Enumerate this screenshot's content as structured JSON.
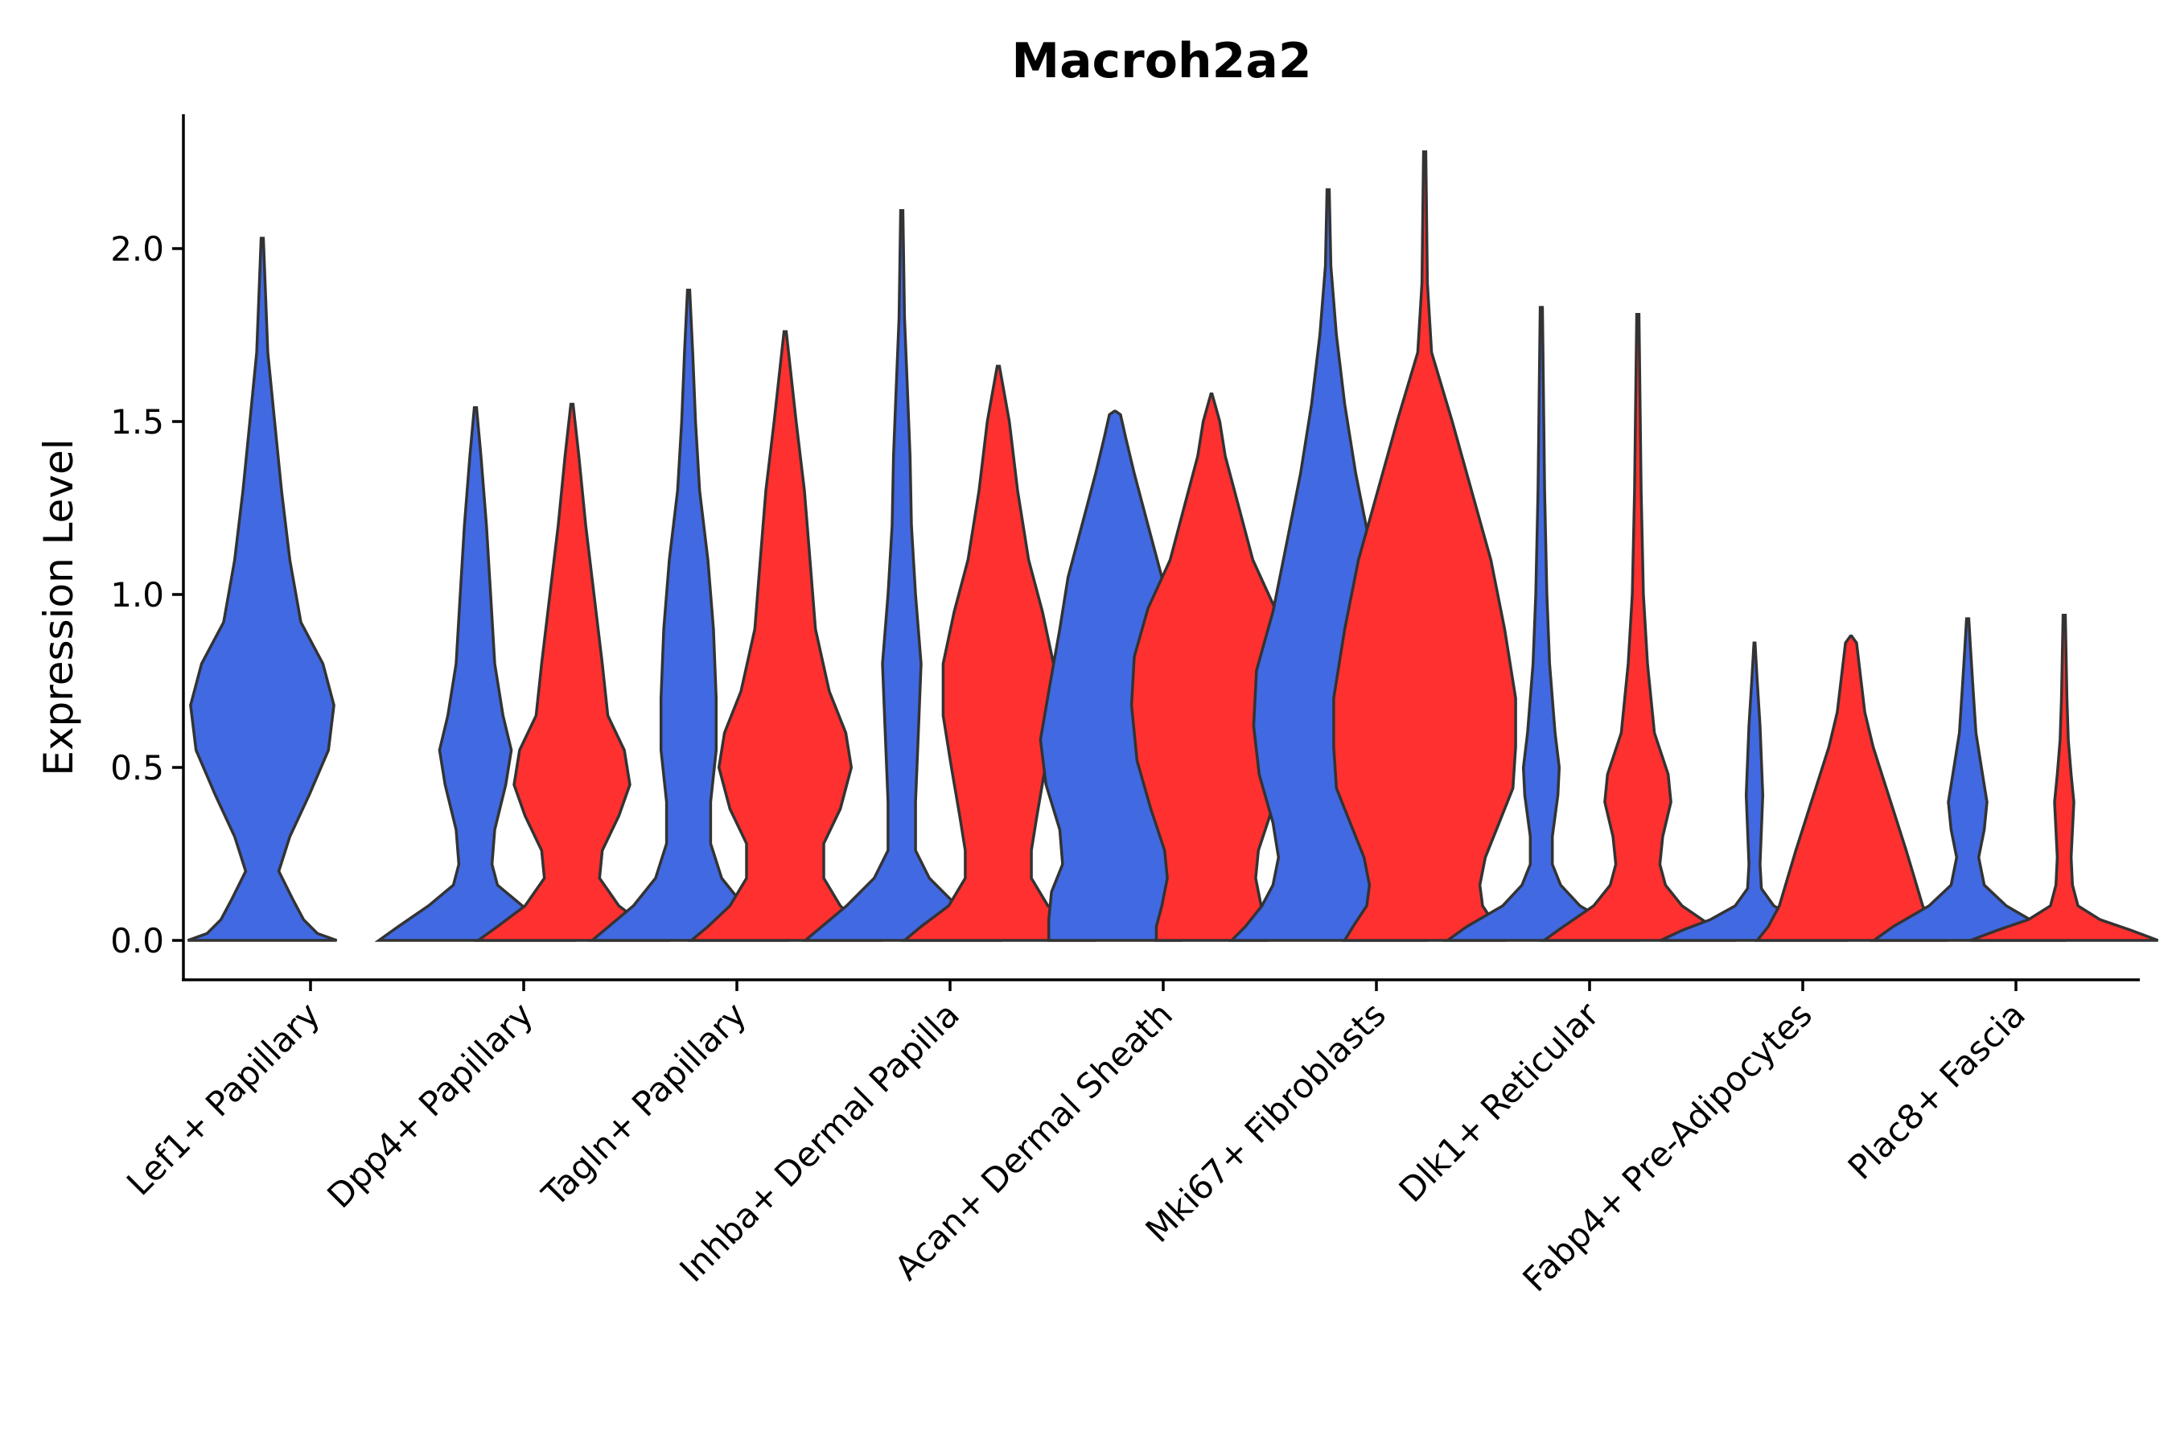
{
  "chart_data": {
    "type": "violin",
    "title": "Macroh2a2",
    "xlabel": "",
    "ylabel": "Expression Level",
    "ylim": [
      -0.12,
      2.4
    ],
    "yticks": [
      0.0,
      0.5,
      1.0,
      1.5,
      2.0
    ],
    "ytick_labels": [
      "0.0",
      "0.5",
      "1.0",
      "1.5",
      "2.0"
    ],
    "categories": [
      "Lef1+ Papillary",
      "Dpp4+ Papillary",
      "Tagln+ Papillary",
      "Inhba+ Dermal Papilla",
      "Acan+ Dermal Sheath",
      "Mki67+ Fibroblasts",
      "Dlk1+ Reticular",
      "Fabp4+ Pre-Adipocytes",
      "Plac8+ Fascia"
    ],
    "split_colors": [
      "#4169E1",
      "#FF3030"
    ],
    "violins": [
      {
        "group": 0,
        "split": 0,
        "max": 2.03,
        "profile": [
          [
            0,
            0.27
          ],
          [
            0.02,
            0.2
          ],
          [
            0.06,
            0.15
          ],
          [
            0.12,
            0.11
          ],
          [
            0.2,
            0.06
          ],
          [
            0.3,
            0.1
          ],
          [
            0.42,
            0.17
          ],
          [
            0.55,
            0.24
          ],
          [
            0.68,
            0.26
          ],
          [
            0.8,
            0.22
          ],
          [
            0.92,
            0.14
          ],
          [
            1.1,
            0.1
          ],
          [
            1.3,
            0.07
          ],
          [
            1.5,
            0.045
          ],
          [
            1.7,
            0.02
          ],
          [
            2.03,
            0.004
          ]
        ]
      },
      {
        "group": 1,
        "split": 0,
        "max": 1.54,
        "profile": [
          [
            0,
            0.35
          ],
          [
            0.04,
            0.28
          ],
          [
            0.1,
            0.17
          ],
          [
            0.16,
            0.08
          ],
          [
            0.22,
            0.06
          ],
          [
            0.32,
            0.07
          ],
          [
            0.45,
            0.11
          ],
          [
            0.55,
            0.13
          ],
          [
            0.65,
            0.1
          ],
          [
            0.8,
            0.07
          ],
          [
            1.0,
            0.055
          ],
          [
            1.2,
            0.04
          ],
          [
            1.4,
            0.02
          ],
          [
            1.54,
            0.004
          ]
        ]
      },
      {
        "group": 1,
        "split": 1,
        "max": 1.55,
        "profile": [
          [
            0,
            0.34
          ],
          [
            0.04,
            0.27
          ],
          [
            0.1,
            0.17
          ],
          [
            0.18,
            0.1
          ],
          [
            0.26,
            0.11
          ],
          [
            0.36,
            0.17
          ],
          [
            0.45,
            0.21
          ],
          [
            0.55,
            0.19
          ],
          [
            0.65,
            0.13
          ],
          [
            0.8,
            0.11
          ],
          [
            1.0,
            0.08
          ],
          [
            1.2,
            0.05
          ],
          [
            1.4,
            0.025
          ],
          [
            1.55,
            0.004
          ]
        ]
      },
      {
        "group": 2,
        "split": 0,
        "max": 1.88,
        "profile": [
          [
            0,
            0.35
          ],
          [
            0.04,
            0.29
          ],
          [
            0.1,
            0.2
          ],
          [
            0.18,
            0.12
          ],
          [
            0.28,
            0.08
          ],
          [
            0.4,
            0.08
          ],
          [
            0.55,
            0.1
          ],
          [
            0.7,
            0.1
          ],
          [
            0.9,
            0.09
          ],
          [
            1.1,
            0.07
          ],
          [
            1.3,
            0.04
          ],
          [
            1.5,
            0.025
          ],
          [
            1.7,
            0.015
          ],
          [
            1.88,
            0.004
          ]
        ]
      },
      {
        "group": 2,
        "split": 1,
        "max": 1.76,
        "profile": [
          [
            0,
            0.34
          ],
          [
            0.04,
            0.28
          ],
          [
            0.1,
            0.2
          ],
          [
            0.18,
            0.14
          ],
          [
            0.28,
            0.14
          ],
          [
            0.38,
            0.2
          ],
          [
            0.5,
            0.24
          ],
          [
            0.6,
            0.22
          ],
          [
            0.72,
            0.16
          ],
          [
            0.9,
            0.11
          ],
          [
            1.1,
            0.09
          ],
          [
            1.3,
            0.07
          ],
          [
            1.5,
            0.04
          ],
          [
            1.76,
            0.004
          ]
        ]
      },
      {
        "group": 3,
        "split": 0,
        "max": 2.11,
        "profile": [
          [
            0,
            0.35
          ],
          [
            0.04,
            0.29
          ],
          [
            0.1,
            0.2
          ],
          [
            0.18,
            0.1
          ],
          [
            0.26,
            0.05
          ],
          [
            0.4,
            0.05
          ],
          [
            0.6,
            0.06
          ],
          [
            0.8,
            0.07
          ],
          [
            1.0,
            0.05
          ],
          [
            1.2,
            0.035
          ],
          [
            1.4,
            0.03
          ],
          [
            1.6,
            0.02
          ],
          [
            1.8,
            0.01
          ],
          [
            2.11,
            0.004
          ]
        ]
      },
      {
        "group": 3,
        "split": 1,
        "max": 1.66,
        "profile": [
          [
            0,
            0.34
          ],
          [
            0.04,
            0.28
          ],
          [
            0.1,
            0.18
          ],
          [
            0.18,
            0.12
          ],
          [
            0.26,
            0.12
          ],
          [
            0.36,
            0.14
          ],
          [
            0.5,
            0.17
          ],
          [
            0.65,
            0.2
          ],
          [
            0.8,
            0.2
          ],
          [
            0.95,
            0.16
          ],
          [
            1.1,
            0.11
          ],
          [
            1.3,
            0.07
          ],
          [
            1.5,
            0.04
          ],
          [
            1.66,
            0.004
          ]
        ]
      },
      {
        "group": 4,
        "split": 0,
        "max": 1.53,
        "profile": [
          [
            0,
            0.24
          ],
          [
            0.06,
            0.24
          ],
          [
            0.14,
            0.23
          ],
          [
            0.22,
            0.19
          ],
          [
            0.32,
            0.2
          ],
          [
            0.45,
            0.25
          ],
          [
            0.58,
            0.27
          ],
          [
            0.72,
            0.24
          ],
          [
            0.9,
            0.2
          ],
          [
            1.05,
            0.17
          ],
          [
            1.2,
            0.12
          ],
          [
            1.35,
            0.07
          ],
          [
            1.45,
            0.04
          ],
          [
            1.52,
            0.02
          ],
          [
            1.53,
            0.002
          ]
        ]
      },
      {
        "group": 4,
        "split": 1,
        "max": 1.58,
        "profile": [
          [
            0,
            0.2
          ],
          [
            0.04,
            0.2
          ],
          [
            0.1,
            0.18
          ],
          [
            0.18,
            0.16
          ],
          [
            0.26,
            0.17
          ],
          [
            0.38,
            0.22
          ],
          [
            0.52,
            0.27
          ],
          [
            0.68,
            0.29
          ],
          [
            0.82,
            0.28
          ],
          [
            0.96,
            0.23
          ],
          [
            1.1,
            0.15
          ],
          [
            1.25,
            0.1
          ],
          [
            1.4,
            0.05
          ],
          [
            1.5,
            0.03
          ],
          [
            1.58,
            0.002
          ]
        ]
      },
      {
        "group": 5,
        "split": 0,
        "max": 2.17,
        "profile": [
          [
            0,
            0.35
          ],
          [
            0.04,
            0.3
          ],
          [
            0.1,
            0.24
          ],
          [
            0.16,
            0.2
          ],
          [
            0.24,
            0.18
          ],
          [
            0.34,
            0.2
          ],
          [
            0.48,
            0.25
          ],
          [
            0.62,
            0.27
          ],
          [
            0.78,
            0.26
          ],
          [
            0.95,
            0.2
          ],
          [
            1.15,
            0.15
          ],
          [
            1.35,
            0.1
          ],
          [
            1.55,
            0.06
          ],
          [
            1.75,
            0.03
          ],
          [
            1.95,
            0.01
          ],
          [
            2.17,
            0.004
          ]
        ]
      },
      {
        "group": 5,
        "split": 1,
        "max": 2.28,
        "profile": [
          [
            0,
            0.29
          ],
          [
            0.04,
            0.26
          ],
          [
            0.1,
            0.21
          ],
          [
            0.16,
            0.2
          ],
          [
            0.24,
            0.22
          ],
          [
            0.34,
            0.27
          ],
          [
            0.44,
            0.32
          ],
          [
            0.56,
            0.33
          ],
          [
            0.7,
            0.33
          ],
          [
            0.9,
            0.29
          ],
          [
            1.1,
            0.24
          ],
          [
            1.3,
            0.17
          ],
          [
            1.5,
            0.1
          ],
          [
            1.7,
            0.025
          ],
          [
            1.9,
            0.01
          ],
          [
            2.28,
            0.004
          ]
        ]
      },
      {
        "group": 6,
        "split": 0,
        "max": 1.83,
        "profile": [
          [
            0,
            0.34
          ],
          [
            0.04,
            0.27
          ],
          [
            0.1,
            0.14
          ],
          [
            0.16,
            0.07
          ],
          [
            0.22,
            0.04
          ],
          [
            0.3,
            0.04
          ],
          [
            0.42,
            0.06
          ],
          [
            0.5,
            0.065
          ],
          [
            0.6,
            0.05
          ],
          [
            0.8,
            0.03
          ],
          [
            1.0,
            0.02
          ],
          [
            1.3,
            0.012
          ],
          [
            1.83,
            0.004
          ]
        ]
      },
      {
        "group": 6,
        "split": 1,
        "max": 1.81,
        "profile": [
          [
            0,
            0.34
          ],
          [
            0.04,
            0.27
          ],
          [
            0.1,
            0.16
          ],
          [
            0.16,
            0.1
          ],
          [
            0.22,
            0.08
          ],
          [
            0.3,
            0.09
          ],
          [
            0.4,
            0.12
          ],
          [
            0.48,
            0.11
          ],
          [
            0.6,
            0.06
          ],
          [
            0.8,
            0.035
          ],
          [
            1.0,
            0.02
          ],
          [
            1.3,
            0.012
          ],
          [
            1.81,
            0.004
          ]
        ]
      },
      {
        "group": 7,
        "split": 0,
        "max": 0.86,
        "profile": [
          [
            0,
            0.34
          ],
          [
            0.03,
            0.26
          ],
          [
            0.06,
            0.16
          ],
          [
            0.1,
            0.07
          ],
          [
            0.15,
            0.025
          ],
          [
            0.22,
            0.02
          ],
          [
            0.32,
            0.025
          ],
          [
            0.42,
            0.03
          ],
          [
            0.52,
            0.025
          ],
          [
            0.62,
            0.02
          ],
          [
            0.75,
            0.01
          ],
          [
            0.86,
            0.002
          ]
        ]
      },
      {
        "group": 7,
        "split": 1,
        "max": 0.88,
        "profile": [
          [
            0,
            0.34
          ],
          [
            0.04,
            0.3
          ],
          [
            0.1,
            0.26
          ],
          [
            0.18,
            0.23
          ],
          [
            0.26,
            0.2
          ],
          [
            0.36,
            0.16
          ],
          [
            0.46,
            0.12
          ],
          [
            0.56,
            0.08
          ],
          [
            0.66,
            0.05
          ],
          [
            0.76,
            0.035
          ],
          [
            0.86,
            0.02
          ],
          [
            0.88,
            0.002
          ]
        ]
      },
      {
        "group": 8,
        "split": 0,
        "max": 0.93,
        "profile": [
          [
            0,
            0.34
          ],
          [
            0.04,
            0.27
          ],
          [
            0.1,
            0.14
          ],
          [
            0.16,
            0.06
          ],
          [
            0.24,
            0.04
          ],
          [
            0.32,
            0.06
          ],
          [
            0.4,
            0.07
          ],
          [
            0.5,
            0.05
          ],
          [
            0.6,
            0.03
          ],
          [
            0.72,
            0.02
          ],
          [
            0.85,
            0.01
          ],
          [
            0.93,
            0.004
          ]
        ]
      },
      {
        "group": 8,
        "split": 1,
        "max": 0.94,
        "profile": [
          [
            0,
            0.34
          ],
          [
            0.03,
            0.24
          ],
          [
            0.06,
            0.13
          ],
          [
            0.1,
            0.05
          ],
          [
            0.16,
            0.03
          ],
          [
            0.24,
            0.025
          ],
          [
            0.32,
            0.03
          ],
          [
            0.4,
            0.035
          ],
          [
            0.48,
            0.025
          ],
          [
            0.58,
            0.015
          ],
          [
            0.7,
            0.01
          ],
          [
            0.94,
            0.004
          ]
        ]
      }
    ]
  }
}
